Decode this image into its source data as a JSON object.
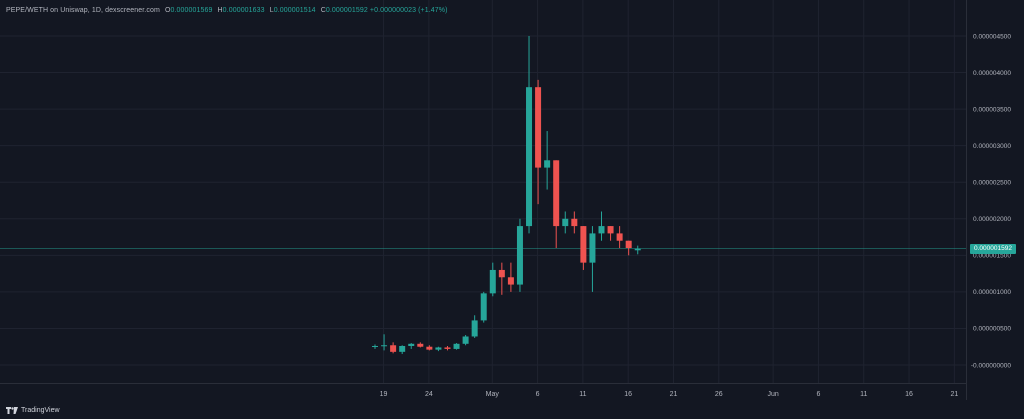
{
  "legend": {
    "symbol": "PEPE/WETH on Uniswap, 1D, dexscreener.com",
    "o_label": "O",
    "o_value": "0.000001569",
    "h_label": "H",
    "h_value": "0.000001633",
    "l_label": "L",
    "l_value": "0.000001514",
    "c_label": "C",
    "c_value": "0.000001592",
    "change": "+0.000000023 (+1.47%)"
  },
  "footer": {
    "brand": "TradingView"
  },
  "last_price": "0.000001592",
  "colors": {
    "up": "#26a69a",
    "down": "#ef5350",
    "grid": "#1f2330",
    "axis_text": "#b2b5be",
    "background": "#131722"
  },
  "chart_data": {
    "type": "candlestick",
    "ylim": [
      -2e-07,
      4.8e-06
    ],
    "y_ticks": [
      "0.000004500",
      "0.000004000",
      "0.000003500",
      "0.000003000",
      "0.000002500",
      "0.000002000",
      "0.000001500",
      "0.000001000",
      "0.000000500",
      "-0.000000000"
    ],
    "x_ticks": [
      "19",
      "24",
      "May",
      "6",
      "11",
      "16",
      "21",
      "26",
      "Jun",
      "6",
      "11",
      "16",
      "21"
    ],
    "last_close": 1.592e-06,
    "candles": [
      {
        "o": 2.5e-07,
        "h": 2.8e-07,
        "l": 2.2e-07,
        "c": 2.6e-07
      },
      {
        "o": 2.6e-07,
        "h": 4.2e-07,
        "l": 2e-07,
        "c": 2.7e-07
      },
      {
        "o": 2.7e-07,
        "h": 3.1e-07,
        "l": 1.6e-07,
        "c": 1.8e-07
      },
      {
        "o": 1.8e-07,
        "h": 2.7e-07,
        "l": 1.5e-07,
        "c": 2.6e-07
      },
      {
        "o": 2.6e-07,
        "h": 3e-07,
        "l": 2.2e-07,
        "c": 2.9e-07
      },
      {
        "o": 2.9e-07,
        "h": 3.1e-07,
        "l": 2.4e-07,
        "c": 2.5e-07
      },
      {
        "o": 2.5e-07,
        "h": 2.7e-07,
        "l": 2e-07,
        "c": 2.1e-07
      },
      {
        "o": 2.1e-07,
        "h": 2.5e-07,
        "l": 1.9e-07,
        "c": 2.4e-07
      },
      {
        "o": 2.4e-07,
        "h": 2.6e-07,
        "l": 2e-07,
        "c": 2.2e-07
      },
      {
        "o": 2.2e-07,
        "h": 3e-07,
        "l": 2.1e-07,
        "c": 2.9e-07
      },
      {
        "o": 2.9e-07,
        "h": 4.1e-07,
        "l": 2.7e-07,
        "c": 3.9e-07
      },
      {
        "o": 3.9e-07,
        "h": 6.8e-07,
        "l": 3.7e-07,
        "c": 6.1e-07
      },
      {
        "o": 6.1e-07,
        "h": 1e-06,
        "l": 5.8e-07,
        "c": 9.8e-07
      },
      {
        "o": 9.8e-07,
        "h": 1.4e-06,
        "l": 9.4e-07,
        "c": 1.3e-06
      },
      {
        "o": 1.3e-06,
        "h": 1.4e-06,
        "l": 9.6e-07,
        "c": 1.2e-06
      },
      {
        "o": 1.2e-06,
        "h": 1.4e-06,
        "l": 1e-06,
        "c": 1.1e-06
      },
      {
        "o": 1.1e-06,
        "h": 2e-06,
        "l": 1e-06,
        "c": 1.9e-06
      },
      {
        "o": 1.9e-06,
        "h": 4.5e-06,
        "l": 1.8e-06,
        "c": 3.8e-06
      },
      {
        "o": 3.8e-06,
        "h": 3.9e-06,
        "l": 2.2e-06,
        "c": 2.7e-06
      },
      {
        "o": 2.7e-06,
        "h": 3.2e-06,
        "l": 2.4e-06,
        "c": 2.8e-06
      },
      {
        "o": 2.8e-06,
        "h": 2.8e-06,
        "l": 1.6e-06,
        "c": 1.9e-06
      },
      {
        "o": 1.9e-06,
        "h": 2.1e-06,
        "l": 1.8e-06,
        "c": 2e-06
      },
      {
        "o": 2e-06,
        "h": 2.1e-06,
        "l": 1.8e-06,
        "c": 1.9e-06
      },
      {
        "o": 1.9e-06,
        "h": 1.9e-06,
        "l": 1.3e-06,
        "c": 1.4e-06
      },
      {
        "o": 1.4e-06,
        "h": 1.9e-06,
        "l": 1e-06,
        "c": 1.8e-06
      },
      {
        "o": 1.8e-06,
        "h": 2.1e-06,
        "l": 1.7e-06,
        "c": 1.9e-06
      },
      {
        "o": 1.9e-06,
        "h": 1.9e-06,
        "l": 1.7e-06,
        "c": 1.8e-06
      },
      {
        "o": 1.8e-06,
        "h": 1.9e-06,
        "l": 1.6e-06,
        "c": 1.7e-06
      },
      {
        "o": 1.7e-06,
        "h": 1.7e-06,
        "l": 1.5e-06,
        "c": 1.6e-06
      },
      {
        "o": 1.569e-06,
        "h": 1.633e-06,
        "l": 1.514e-06,
        "c": 1.592e-06
      }
    ]
  }
}
